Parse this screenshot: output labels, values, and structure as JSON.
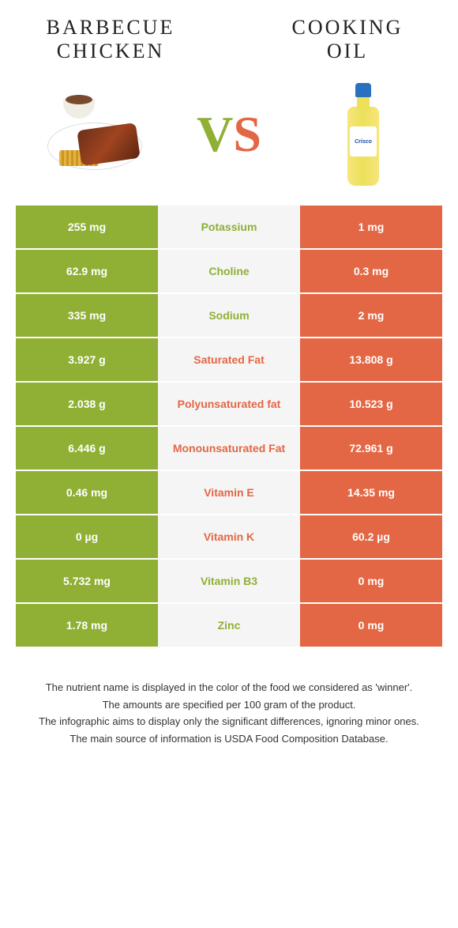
{
  "colors": {
    "green": "#8fb034",
    "orange": "#e36744",
    "mid_bg": "#f5f5f5"
  },
  "header": {
    "left_title": "Barbecue Chicken",
    "right_title": "Cooking Oil",
    "vs_v": "V",
    "vs_s": "S",
    "bottle_label": "Crisco"
  },
  "rows": [
    {
      "nutrient": "Potassium",
      "left": "255 mg",
      "right": "1 mg",
      "winner": "left"
    },
    {
      "nutrient": "Choline",
      "left": "62.9 mg",
      "right": "0.3 mg",
      "winner": "left"
    },
    {
      "nutrient": "Sodium",
      "left": "335 mg",
      "right": "2 mg",
      "winner": "left"
    },
    {
      "nutrient": "Saturated Fat",
      "left": "3.927 g",
      "right": "13.808 g",
      "winner": "right"
    },
    {
      "nutrient": "Polyunsaturated fat",
      "left": "2.038 g",
      "right": "10.523 g",
      "winner": "right"
    },
    {
      "nutrient": "Monounsaturated Fat",
      "left": "6.446 g",
      "right": "72.961 g",
      "winner": "right"
    },
    {
      "nutrient": "Vitamin E",
      "left": "0.46 mg",
      "right": "14.35 mg",
      "winner": "right"
    },
    {
      "nutrient": "Vitamin K",
      "left": "0 µg",
      "right": "60.2 µg",
      "winner": "right"
    },
    {
      "nutrient": "Vitamin B3",
      "left": "5.732 mg",
      "right": "0 mg",
      "winner": "left"
    },
    {
      "nutrient": "Zinc",
      "left": "1.78 mg",
      "right": "0 mg",
      "winner": "left"
    }
  ],
  "footer": {
    "line1": "The nutrient name is displayed in the color of the food we considered as 'winner'.",
    "line2": "The amounts are specified per 100 gram of the product.",
    "line3": "The infographic aims to display only the significant differences, ignoring minor ones.",
    "line4": "The main source of information is USDA Food Composition Database."
  }
}
